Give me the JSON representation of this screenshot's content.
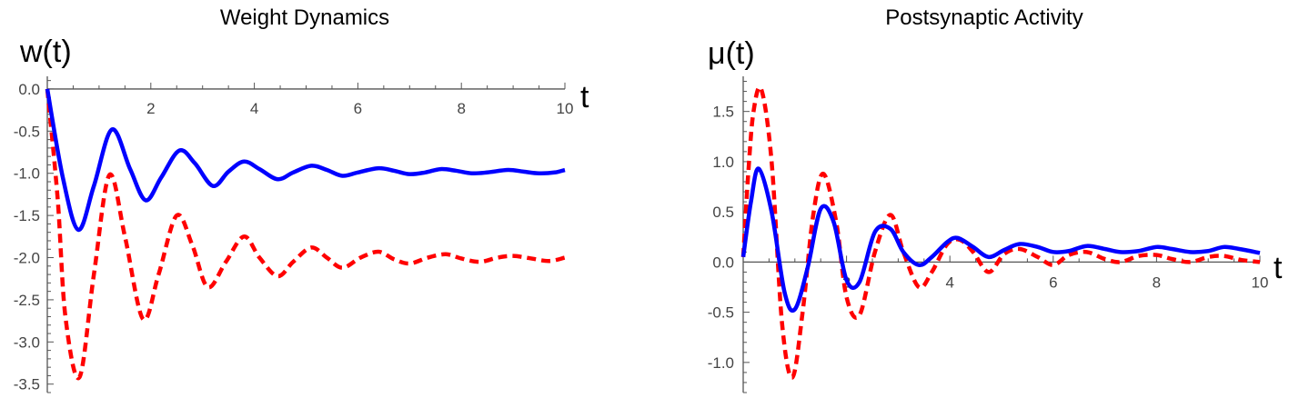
{
  "chart_data": [
    {
      "type": "line",
      "title": "Weight Dynamics",
      "xlabel": "t",
      "ylabel": "w(t)",
      "xlim": [
        0,
        10
      ],
      "ylim": [
        -3.6,
        0.15
      ],
      "x_ticks": [
        2,
        4,
        6,
        8,
        10
      ],
      "x_tick_labels": [
        "2",
        "4",
        "6",
        "8",
        "10"
      ],
      "y_ticks": [
        0.0,
        -0.5,
        -1.0,
        -1.5,
        -2.0,
        -2.5,
        -3.0,
        -3.5
      ],
      "y_tick_labels": [
        "0.0",
        "-0.5",
        "-1.0",
        "-1.5",
        "-2.0",
        "-2.5",
        "-3.0",
        "-3.5"
      ],
      "grid": false,
      "series": [
        {
          "color": "#0000ff",
          "style": "solid",
          "x": [
            0,
            0.3,
            0.6,
            0.9,
            1.25,
            1.6,
            1.9,
            2.2,
            2.55,
            2.85,
            3.2,
            3.5,
            3.8,
            4.1,
            4.45,
            4.75,
            5.1,
            5.4,
            5.7,
            6.0,
            6.4,
            6.7,
            7.0,
            7.3,
            7.6,
            7.9,
            8.2,
            8.5,
            8.9,
            9.2,
            9.5,
            9.8,
            10.0
          ],
          "y": [
            0,
            -1.05,
            -1.67,
            -1.15,
            -0.48,
            -0.95,
            -1.32,
            -1.05,
            -0.73,
            -0.88,
            -1.15,
            -0.98,
            -0.86,
            -0.95,
            -1.07,
            -0.99,
            -0.91,
            -0.96,
            -1.03,
            -0.99,
            -0.94,
            -0.97,
            -1.01,
            -0.99,
            -0.95,
            -0.97,
            -1.0,
            -0.99,
            -0.96,
            -0.98,
            -1.0,
            -0.99,
            -0.96
          ]
        },
        {
          "color": "#ff0000",
          "style": "dashed",
          "x": [
            0,
            0.2,
            0.35,
            0.62,
            0.9,
            1.2,
            1.5,
            1.85,
            2.15,
            2.5,
            2.8,
            3.1,
            3.45,
            3.8,
            4.1,
            4.45,
            4.75,
            5.1,
            5.4,
            5.7,
            6.05,
            6.4,
            6.7,
            7.0,
            7.35,
            7.7,
            8.0,
            8.35,
            8.7,
            9.0,
            9.35,
            9.7,
            10.0
          ],
          "y": [
            0,
            -1.3,
            -2.7,
            -3.42,
            -2.2,
            -1.02,
            -1.75,
            -2.73,
            -2.2,
            -1.5,
            -1.85,
            -2.35,
            -2.05,
            -1.75,
            -2.0,
            -2.22,
            -2.05,
            -1.88,
            -2.0,
            -2.12,
            -2.0,
            -1.93,
            -2.02,
            -2.07,
            -2.0,
            -1.96,
            -2.01,
            -2.05,
            -2.0,
            -1.98,
            -2.01,
            -2.04,
            -2.0
          ]
        }
      ]
    },
    {
      "type": "line",
      "title": "Postsynaptic Activity",
      "xlabel": "t",
      "ylabel": "μ(t)",
      "xlim": [
        0,
        10
      ],
      "ylim": [
        -1.3,
        1.85
      ],
      "x_ticks": [
        2,
        4,
        6,
        8,
        10
      ],
      "x_tick_labels": [
        "2",
        "4",
        "6",
        "8",
        "10"
      ],
      "y_ticks": [
        1.5,
        1.0,
        0.5,
        0.0,
        -0.5,
        -1.0
      ],
      "y_tick_labels": [
        "1.5",
        "1.0",
        "0.5",
        "0.0",
        "-0.5",
        "-1.0"
      ],
      "grid": false,
      "series": [
        {
          "color": "#0000ff",
          "style": "solid",
          "x": [
            0,
            0.15,
            0.3,
            0.55,
            0.8,
            1.0,
            1.25,
            1.5,
            1.75,
            2.0,
            2.25,
            2.55,
            2.85,
            3.1,
            3.4,
            3.65,
            3.95,
            4.15,
            4.45,
            4.75,
            5.05,
            5.35,
            5.7,
            6.0,
            6.3,
            6.65,
            7.0,
            7.3,
            7.65,
            8.0,
            8.3,
            8.65,
            9.0,
            9.3,
            9.6,
            10.0
          ],
          "y": [
            0.05,
            0.6,
            0.93,
            0.5,
            -0.3,
            -0.47,
            -0.05,
            0.53,
            0.4,
            -0.18,
            -0.2,
            0.3,
            0.33,
            0.1,
            -0.03,
            0.05,
            0.2,
            0.24,
            0.15,
            0.05,
            0.12,
            0.18,
            0.15,
            0.1,
            0.11,
            0.16,
            0.13,
            0.1,
            0.11,
            0.15,
            0.13,
            0.1,
            0.11,
            0.15,
            0.13,
            0.09
          ]
        },
        {
          "color": "#ff0000",
          "style": "dashed",
          "x": [
            0,
            0.1,
            0.2,
            0.35,
            0.55,
            0.75,
            0.95,
            1.15,
            1.35,
            1.55,
            1.8,
            2.0,
            2.25,
            2.55,
            2.85,
            3.1,
            3.4,
            3.65,
            3.95,
            4.2,
            4.45,
            4.75,
            5.05,
            5.35,
            5.7,
            6.0,
            6.3,
            6.65,
            7.0,
            7.3,
            7.65,
            8.0,
            8.3,
            8.65,
            9.0,
            9.3,
            9.65,
            10.0
          ],
          "y": [
            0.05,
            0.9,
            1.5,
            1.72,
            1.0,
            -0.6,
            -1.15,
            -0.5,
            0.45,
            0.88,
            0.4,
            -0.35,
            -0.53,
            0.1,
            0.47,
            0.1,
            -0.25,
            -0.1,
            0.18,
            0.22,
            0.1,
            -0.1,
            0.08,
            0.13,
            0.05,
            -0.03,
            0.07,
            0.1,
            0.03,
            0.0,
            0.06,
            0.07,
            0.03,
            0.0,
            0.05,
            0.06,
            0.02,
            0.0
          ]
        }
      ]
    }
  ]
}
